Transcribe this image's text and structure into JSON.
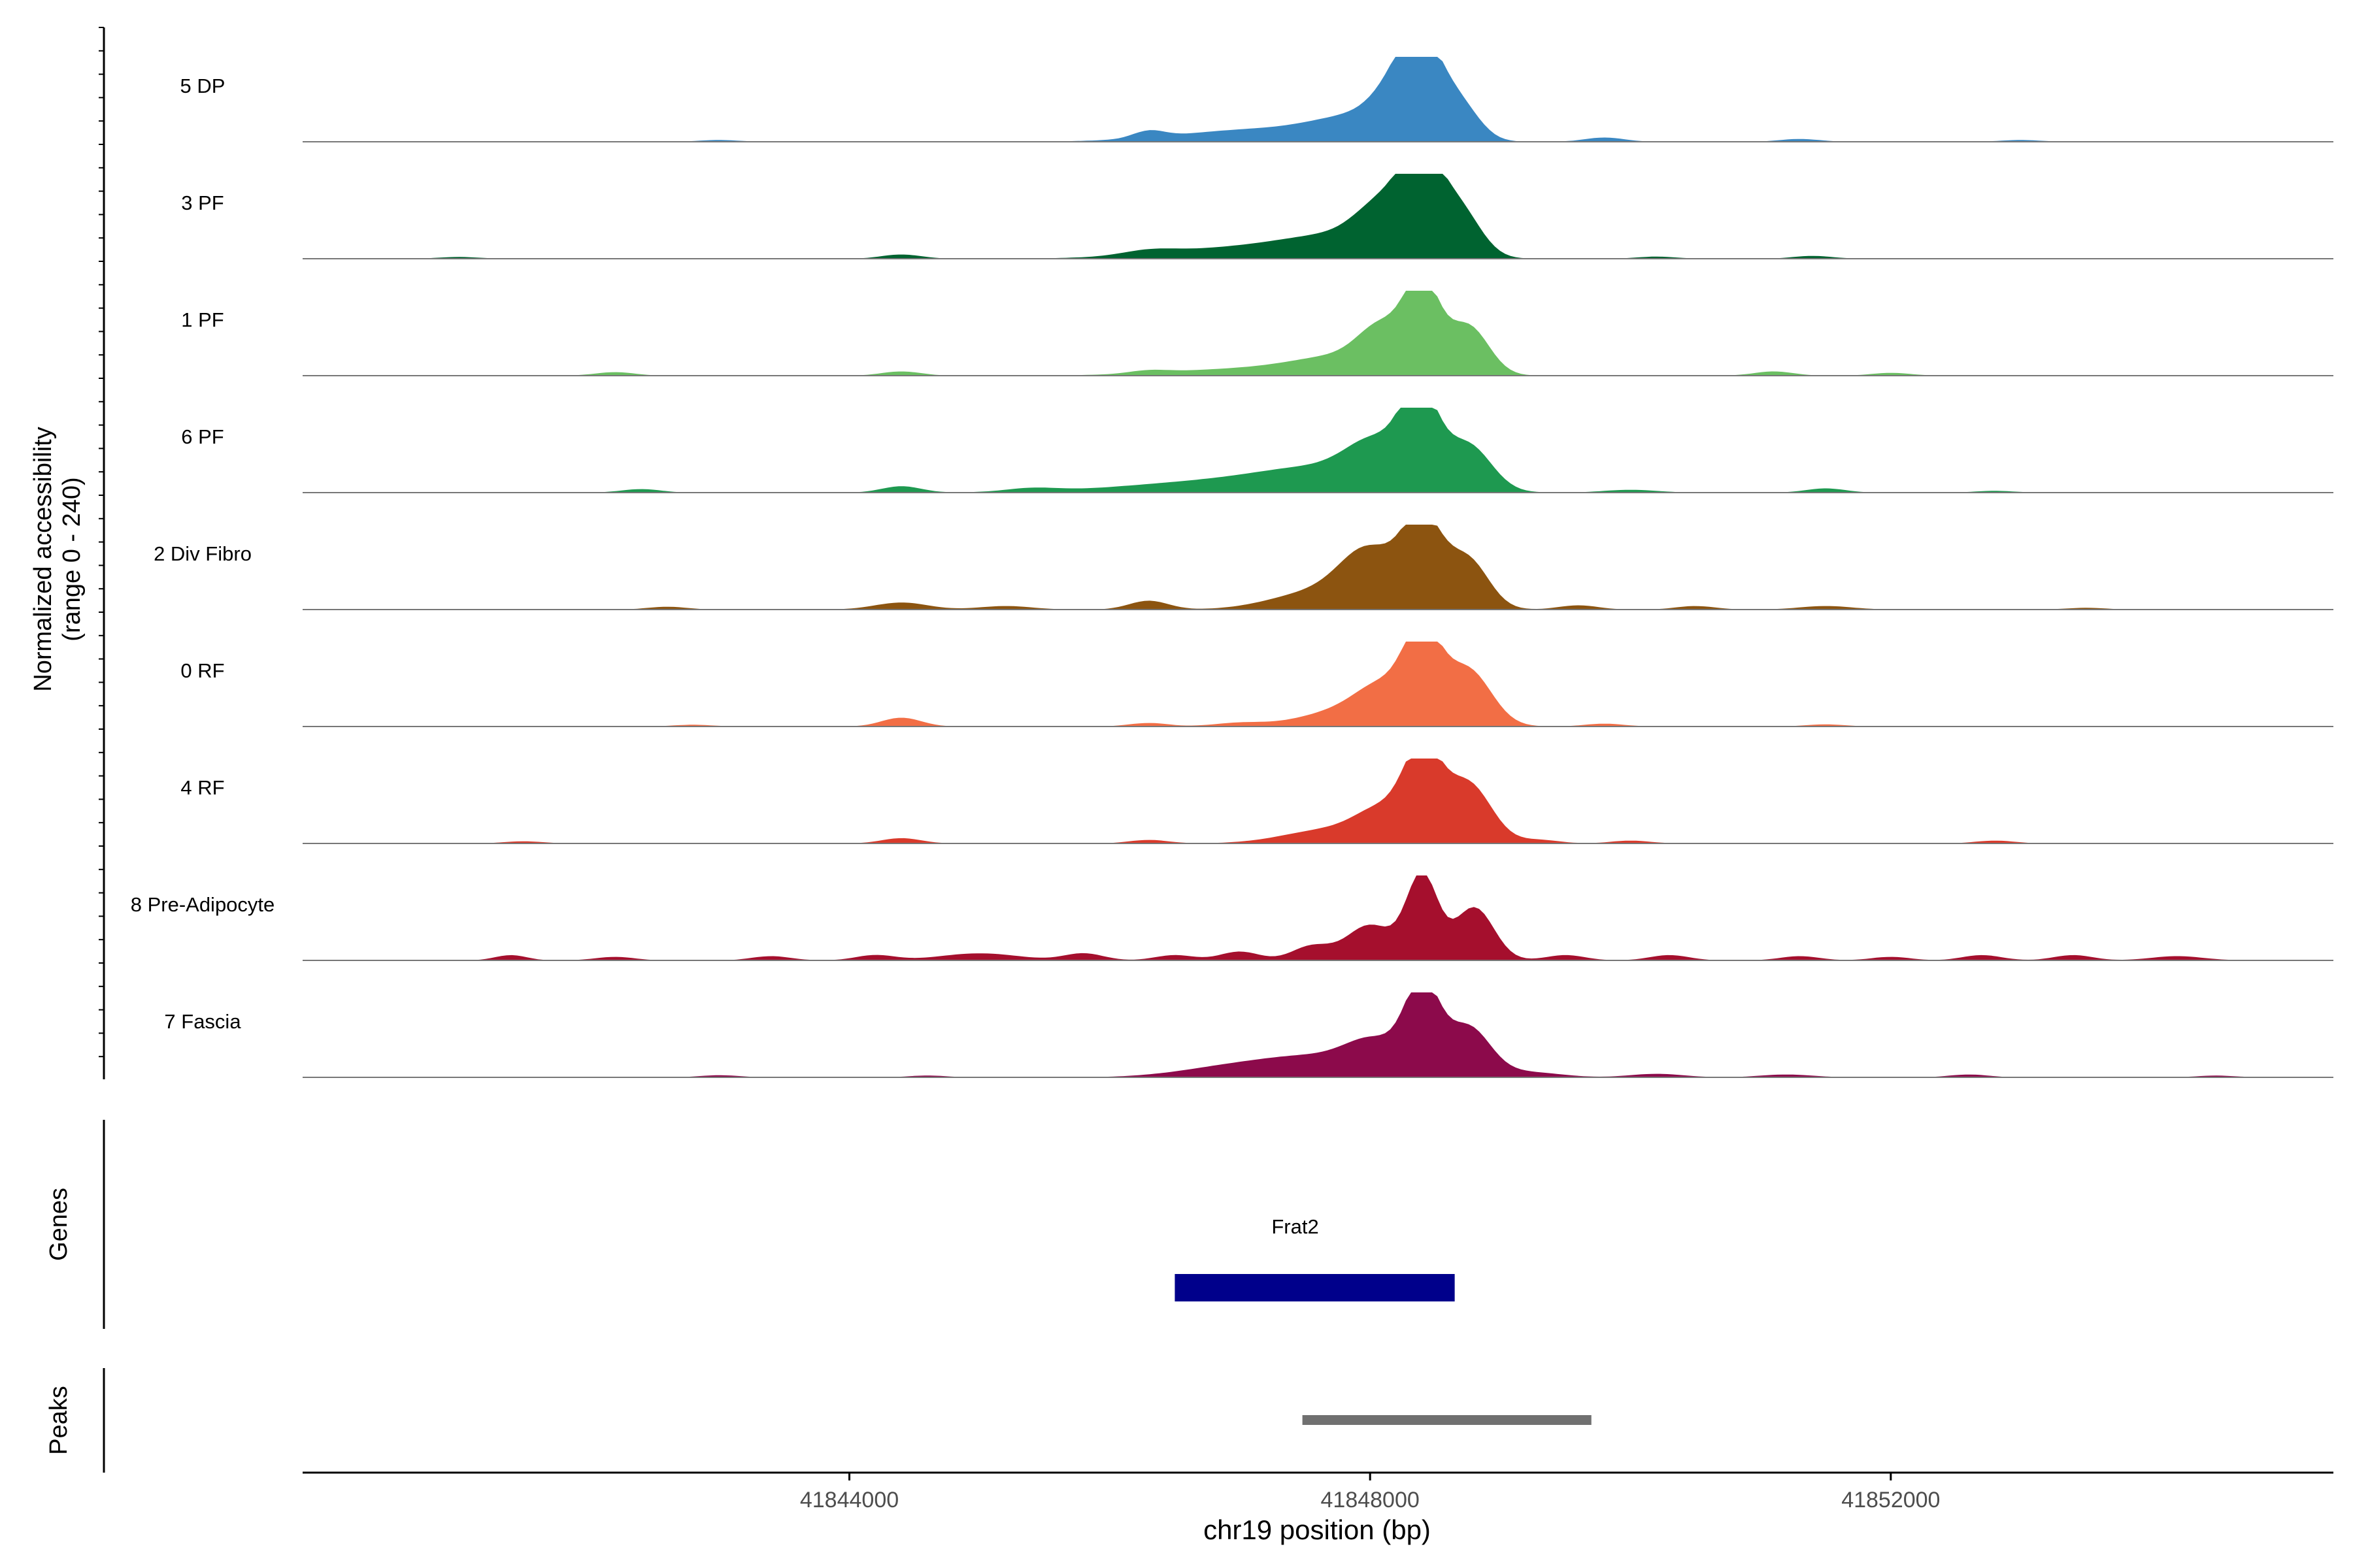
{
  "chart_data": {
    "type": "area",
    "title": "",
    "xlabel": "chr19 position (bp)",
    "ylabel": "Normalized accessibility",
    "ylabel_range": "(range 0 - 240)",
    "ylim": [
      0,
      240
    ],
    "xlim": [
      41839800,
      41855400
    ],
    "x_ticks": [
      41844000,
      41848000,
      41852000
    ],
    "x_tick_labels": [
      "41844000",
      "41848000",
      "41852000"
    ],
    "tracks": [
      {
        "name": "5 DP",
        "color": "#3A87C2",
        "peaks": [
          [
            41848400,
            240,
            160
          ],
          [
            41848190,
            95,
            180
          ],
          [
            41848700,
            90,
            150
          ],
          [
            41847900,
            55,
            330
          ],
          [
            41847150,
            35,
            600
          ],
          [
            41846300,
            20,
            120
          ],
          [
            41849800,
            12,
            150
          ],
          [
            41851300,
            8,
            150
          ],
          [
            41853000,
            5,
            150
          ],
          [
            41843000,
            5,
            150
          ]
        ]
      },
      {
        "name": "3 PF",
        "color": "#006330",
        "peaks": [
          [
            41848400,
            240,
            160
          ],
          [
            41848100,
            110,
            200
          ],
          [
            41848700,
            120,
            160
          ],
          [
            41847800,
            55,
            420
          ],
          [
            41847000,
            30,
            600
          ],
          [
            41846300,
            12,
            200
          ],
          [
            41844400,
            12,
            150
          ],
          [
            41851400,
            8,
            150
          ],
          [
            41850200,
            6,
            150
          ],
          [
            41841000,
            5,
            150
          ]
        ]
      },
      {
        "name": "1 PF",
        "color": "#6BBF62",
        "peaks": [
          [
            41848400,
            240,
            130
          ],
          [
            41848100,
            110,
            180
          ],
          [
            41848750,
            140,
            160
          ],
          [
            41847800,
            45,
            360
          ],
          [
            41847100,
            20,
            600
          ],
          [
            41844400,
            12,
            150
          ],
          [
            41842200,
            10,
            150
          ],
          [
            41851100,
            12,
            150
          ],
          [
            41852000,
            8,
            150
          ],
          [
            41846300,
            8,
            150
          ]
        ]
      },
      {
        "name": "6 PF",
        "color": "#1E9950",
        "peaks": [
          [
            41848380,
            240,
            140
          ],
          [
            41848050,
            100,
            220
          ],
          [
            41848750,
            130,
            180
          ],
          [
            41847700,
            60,
            500
          ],
          [
            41846800,
            30,
            700
          ],
          [
            41844400,
            18,
            150
          ],
          [
            41845400,
            10,
            200
          ],
          [
            41842400,
            10,
            150
          ],
          [
            41850000,
            8,
            200
          ],
          [
            41851500,
            12,
            150
          ],
          [
            41852800,
            5,
            150
          ]
        ]
      },
      {
        "name": "2 Div Fibro",
        "color": "#8C5410",
        "peaks": [
          [
            41848400,
            240,
            150
          ],
          [
            41848000,
            150,
            220
          ],
          [
            41848750,
            140,
            160
          ],
          [
            41847600,
            50,
            350
          ],
          [
            41846300,
            25,
            150
          ],
          [
            41844400,
            20,
            200
          ],
          [
            41845200,
            10,
            200
          ],
          [
            41849600,
            12,
            150
          ],
          [
            41850500,
            10,
            150
          ],
          [
            41851500,
            10,
            200
          ],
          [
            41842600,
            8,
            150
          ],
          [
            41853500,
            5,
            150
          ]
        ]
      },
      {
        "name": "0 RF",
        "color": "#F26E45",
        "peaks": [
          [
            41848400,
            240,
            140
          ],
          [
            41848100,
            90,
            200
          ],
          [
            41848750,
            160,
            180
          ],
          [
            41847800,
            45,
            320
          ],
          [
            41844400,
            25,
            150
          ],
          [
            41846300,
            10,
            150
          ],
          [
            41847000,
            10,
            200
          ],
          [
            41849800,
            8,
            150
          ],
          [
            41851500,
            6,
            150
          ],
          [
            41842800,
            5,
            150
          ]
        ]
      },
      {
        "name": "4 RF",
        "color": "#D93A2B",
        "peaks": [
          [
            41848400,
            240,
            140
          ],
          [
            41848100,
            80,
            200
          ],
          [
            41848750,
            170,
            180
          ],
          [
            41847700,
            40,
            350
          ],
          [
            41844400,
            15,
            150
          ],
          [
            41846300,
            10,
            150
          ],
          [
            41849300,
            10,
            150
          ],
          [
            41850000,
            8,
            150
          ],
          [
            41852800,
            8,
            150
          ],
          [
            41841500,
            6,
            150
          ]
        ]
      },
      {
        "name": "8 Pre-Adipocyte",
        "color": "#A50F2D",
        "peaks": [
          [
            41848400,
            240,
            120
          ],
          [
            41848000,
            100,
            180
          ],
          [
            41848800,
            150,
            150
          ],
          [
            41847550,
            40,
            150
          ],
          [
            41847000,
            25,
            150
          ],
          [
            41846500,
            15,
            150
          ],
          [
            41845800,
            20,
            150
          ],
          [
            41845000,
            20,
            300
          ],
          [
            41844200,
            15,
            150
          ],
          [
            41843400,
            12,
            150
          ],
          [
            41841400,
            15,
            120
          ],
          [
            41842200,
            10,
            150
          ],
          [
            41849500,
            15,
            150
          ],
          [
            41850300,
            15,
            150
          ],
          [
            41851300,
            12,
            150
          ],
          [
            41852000,
            10,
            150
          ],
          [
            41852700,
            15,
            150
          ],
          [
            41853400,
            15,
            150
          ],
          [
            41854200,
            12,
            200
          ]
        ]
      },
      {
        "name": "7 Fascia",
        "color": "#8C0A4B",
        "peaks": [
          [
            41848400,
            240,
            130
          ],
          [
            41848050,
            80,
            220
          ],
          [
            41848750,
            140,
            170
          ],
          [
            41847600,
            55,
            420
          ],
          [
            41846900,
            25,
            400
          ],
          [
            41849200,
            15,
            250
          ],
          [
            41850200,
            10,
            200
          ],
          [
            41851200,
            8,
            200
          ],
          [
            41852600,
            8,
            150
          ],
          [
            41843000,
            6,
            150
          ],
          [
            41844600,
            5,
            150
          ],
          [
            41854500,
            5,
            150
          ]
        ]
      }
    ],
    "genes_track": {
      "label": "Genes",
      "genes": [
        {
          "name": "Frat2",
          "start": 41846500,
          "end": 41848650,
          "color": "#00008B"
        }
      ]
    },
    "peaks_track": {
      "label": "Peaks",
      "regions": [
        {
          "start": 41847480,
          "end": 41849700,
          "color": "#707070"
        }
      ]
    }
  }
}
